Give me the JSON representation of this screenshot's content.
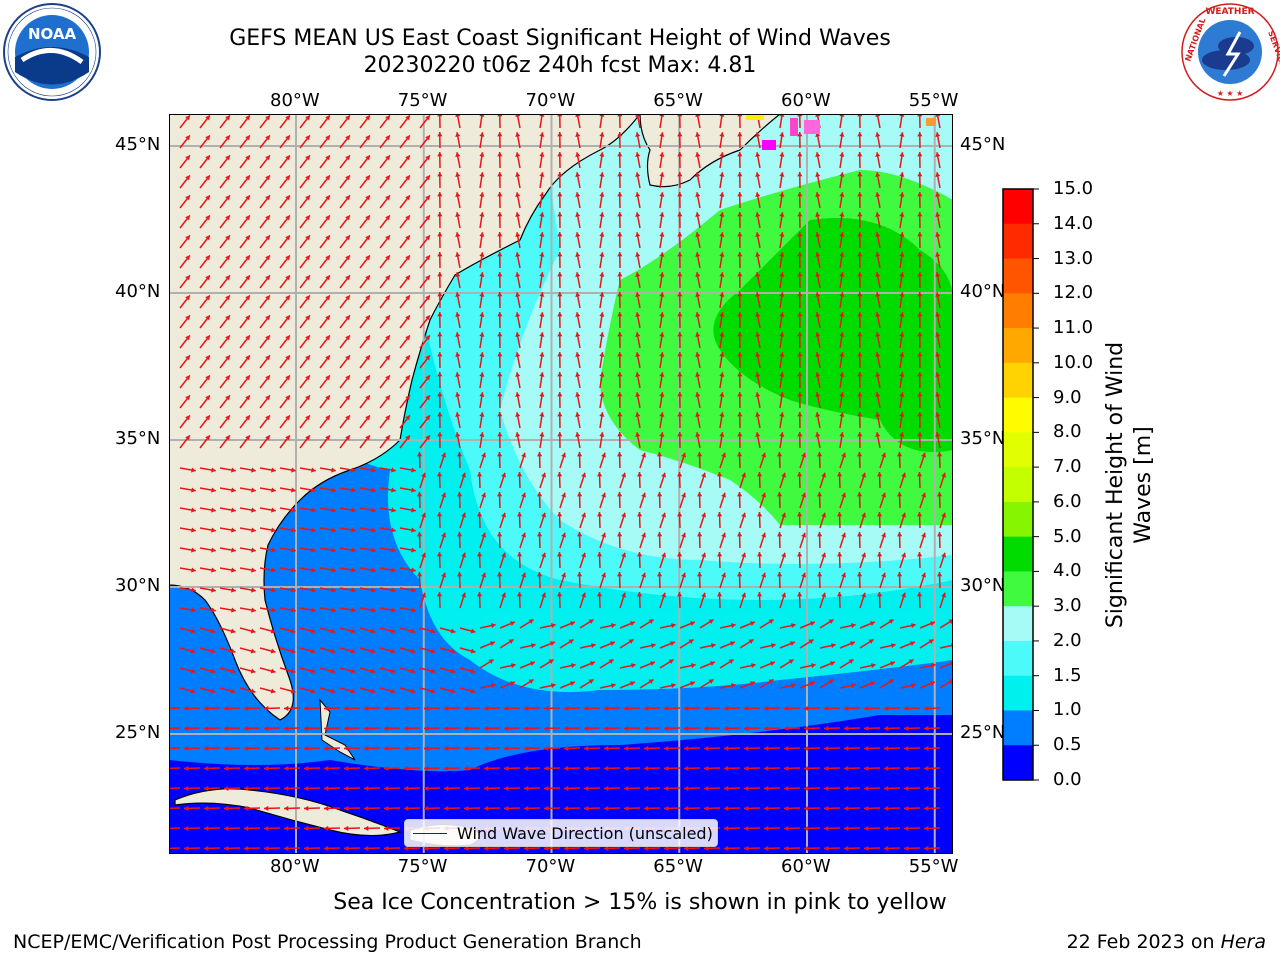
{
  "title": {
    "line1": "GEFS MEAN US East Coast Significant Height of Wind Waves",
    "line2": "20230220 t06z 240h fcst   Max: 4.81"
  },
  "logos": {
    "left": {
      "name": "NOAA",
      "ring_text": "NATIONAL OCEANIC AND ATMOSPHERIC ADMINISTRATION · U.S. DEPARTMENT OF COMMERCE"
    },
    "right": {
      "name": "National Weather Service",
      "ring_text": "NATIONAL WEATHER SERVICE"
    }
  },
  "map": {
    "lon_labels": [
      "80°W",
      "75°W",
      "70°W",
      "65°W",
      "60°W",
      "55°W"
    ],
    "lat_labels": [
      "45°N",
      "40°N",
      "35°N",
      "30°N",
      "25°N"
    ],
    "lon_range": [
      -85,
      -54.2
    ],
    "lat_range": [
      20,
      46
    ],
    "land_color": "#efebdb",
    "arrow_color": "#e8161a",
    "grid": true
  },
  "legend": {
    "label": "Wind Wave Direction (unscaled)"
  },
  "colorbar": {
    "title": "Significant Height of Wind Waves [m]",
    "ticks": [
      "15.0",
      "14.0",
      "13.0",
      "12.0",
      "11.0",
      "10.0",
      "9.0",
      "8.0",
      "7.0",
      "6.0",
      "5.0",
      "4.0",
      "3.0",
      "2.0",
      "1.5",
      "1.0",
      "0.5",
      "0.0"
    ],
    "colors": [
      "#ff0000",
      "#ff2a00",
      "#ff5400",
      "#ff7e00",
      "#ffa800",
      "#ffd200",
      "#fffc00",
      "#e2ff00",
      "#c4ff00",
      "#86f500",
      "#00dc00",
      "#3ffa3f",
      "#a6fbf6",
      "#4dfafa",
      "#00f0f0",
      "#007eff",
      "#0000ff"
    ]
  },
  "notes": {
    "sea_ice": "Sea Ice Concentration > 15% is shown in pink to yellow"
  },
  "footer": {
    "left": "NCEP/EMC/Verification Post Processing Product Generation Branch",
    "right_date": "22 Feb 2023 on ",
    "right_host": "Hera"
  }
}
